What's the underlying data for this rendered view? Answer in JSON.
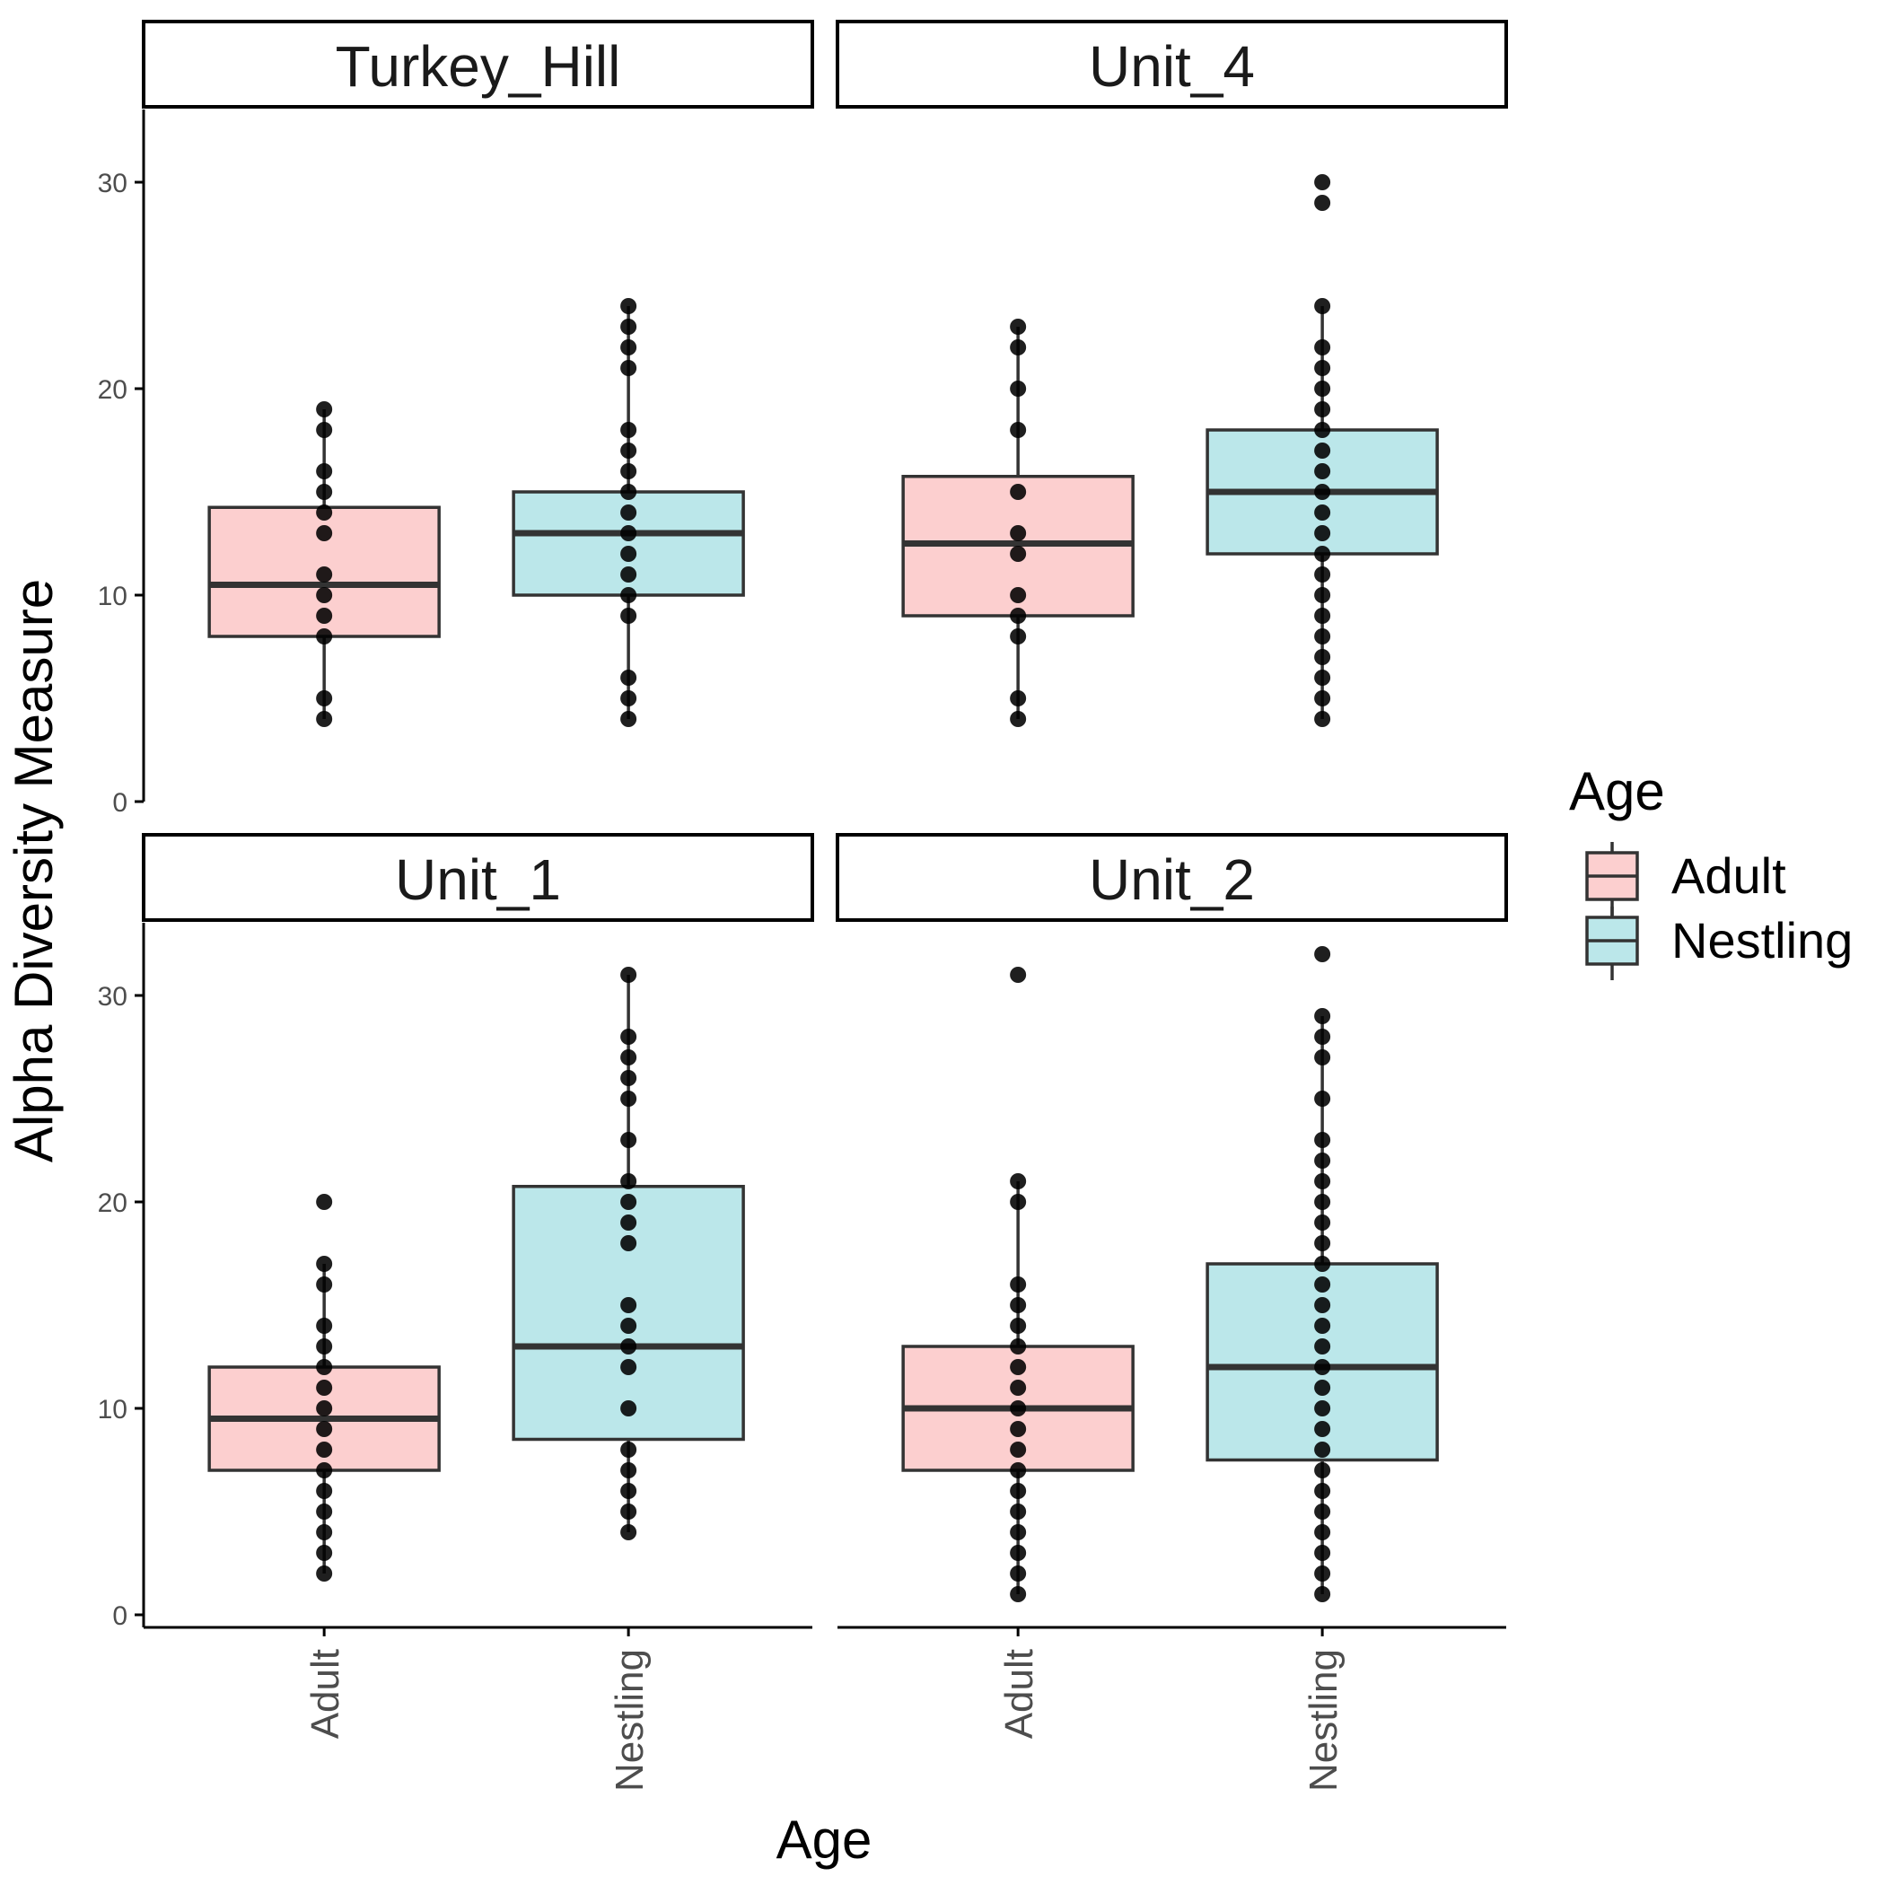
{
  "chart_data": {
    "type": "boxplot",
    "xlabel": "Age",
    "ylabel": "Alpha Diversity Measure",
    "ylim": [
      0,
      33
    ],
    "yticks": [
      0,
      10,
      20,
      30
    ],
    "categories": [
      "Adult",
      "Nestling"
    ],
    "legend": {
      "title": "Age",
      "position": "right",
      "entries": [
        {
          "label": "Adult",
          "color": "#f8766d"
        },
        {
          "label": "Nestling",
          "color": "#00bfc4"
        }
      ]
    },
    "fill_colors": {
      "Adult": "#fccfcf",
      "Nestling": "#bbe7ea"
    },
    "panels": [
      {
        "title": "Turkey_Hill",
        "boxes": [
          {
            "group": "Adult",
            "q1": 8,
            "median": 10.5,
            "q3": 14.25,
            "whisker_low": 4,
            "whisker_high": 19,
            "points": [
              4,
              5,
              8,
              9,
              10,
              11,
              13,
              14,
              15,
              16,
              18,
              19
            ]
          },
          {
            "group": "Nestling",
            "q1": 10,
            "median": 13,
            "q3": 15,
            "whisker_low": 4,
            "whisker_high": 24,
            "points": [
              4,
              5,
              6,
              9,
              10,
              11,
              12,
              13,
              14,
              15,
              16,
              17,
              18,
              21,
              22,
              23,
              24
            ]
          }
        ]
      },
      {
        "title": "Unit_4",
        "boxes": [
          {
            "group": "Adult",
            "q1": 9,
            "median": 12.5,
            "q3": 15.75,
            "whisker_low": 4,
            "whisker_high": 23,
            "points": [
              4,
              5,
              8,
              9,
              10,
              12,
              13,
              15,
              18,
              20,
              22,
              23
            ]
          },
          {
            "group": "Nestling",
            "q1": 12,
            "median": 15,
            "q3": 18,
            "whisker_low": 4,
            "whisker_high": 24,
            "points": [
              4,
              5,
              6,
              7,
              8,
              9,
              10,
              11,
              12,
              13,
              14,
              15,
              16,
              17,
              18,
              19,
              20,
              21,
              22,
              24,
              29,
              30
            ]
          }
        ]
      },
      {
        "title": "Unit_1",
        "boxes": [
          {
            "group": "Adult",
            "q1": 7,
            "median": 9.5,
            "q3": 12,
            "whisker_low": 2,
            "whisker_high": 17,
            "points": [
              2,
              3,
              4,
              5,
              6,
              7,
              8,
              9,
              10,
              11,
              12,
              13,
              14,
              16,
              17,
              20
            ]
          },
          {
            "group": "Nestling",
            "q1": 8.5,
            "median": 13,
            "q3": 20.75,
            "whisker_low": 4,
            "whisker_high": 31,
            "points": [
              4,
              5,
              6,
              7,
              8,
              10,
              12,
              13,
              14,
              15,
              18,
              19,
              20,
              21,
              23,
              25,
              26,
              27,
              28,
              31
            ]
          }
        ]
      },
      {
        "title": "Unit_2",
        "boxes": [
          {
            "group": "Adult",
            "q1": 7,
            "median": 10,
            "q3": 13,
            "whisker_low": 1,
            "whisker_high": 21,
            "points": [
              1,
              2,
              3,
              4,
              5,
              6,
              7,
              8,
              9,
              10,
              11,
              12,
              13,
              14,
              15,
              16,
              20,
              21,
              31
            ]
          },
          {
            "group": "Nestling",
            "q1": 7.5,
            "median": 12,
            "q3": 17,
            "whisker_low": 1,
            "whisker_high": 29,
            "points": [
              1,
              2,
              3,
              4,
              5,
              6,
              7,
              8,
              9,
              10,
              11,
              12,
              13,
              14,
              15,
              16,
              17,
              18,
              19,
              20,
              21,
              22,
              23,
              25,
              27,
              28,
              29,
              32
            ]
          }
        ]
      }
    ]
  }
}
